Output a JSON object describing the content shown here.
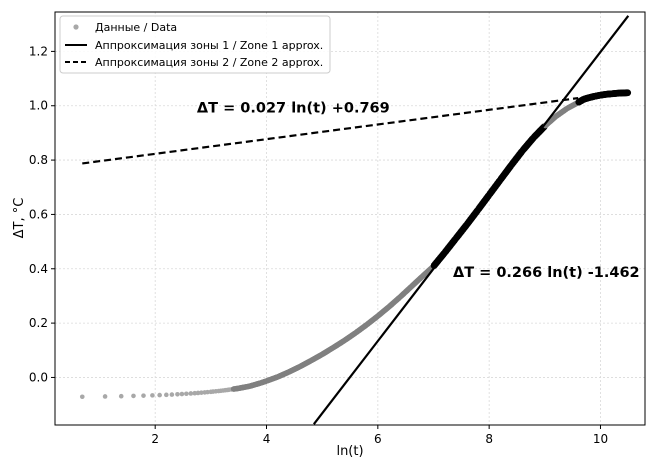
{
  "chart_data": {
    "type": "scatter",
    "title": "",
    "xlabel": "ln(t)",
    "ylabel": "ΔT, °C",
    "xlim": [
      0.2,
      10.8
    ],
    "ylim": [
      -0.175,
      1.345
    ],
    "x_ticks": [
      2,
      4,
      6,
      8,
      10
    ],
    "x_tick_labels": [
      "2",
      "4",
      "6",
      "8",
      "10"
    ],
    "y_ticks": [
      0.0,
      0.2,
      0.4,
      0.6,
      0.8,
      1.0,
      1.2
    ],
    "y_tick_labels": [
      "0.0",
      "0.2",
      "0.4",
      "0.6",
      "0.8",
      "1.0",
      "1.2"
    ],
    "grid": true,
    "legend_position": "top-left",
    "colors": {
      "data": "#808080",
      "data_light": "#a8a8a8",
      "fit": "#000000",
      "grid": "#d9d9d9"
    },
    "series": [
      {
        "name": "Данные / Data",
        "kind": "scatter",
        "points": [
          [
            0.69,
            -0.071
          ],
          [
            1.1,
            -0.07
          ],
          [
            1.39,
            -0.069
          ],
          [
            1.61,
            -0.068
          ],
          [
            1.79,
            -0.067
          ],
          [
            1.95,
            -0.066
          ],
          [
            2.08,
            -0.065
          ],
          [
            2.2,
            -0.064
          ],
          [
            2.3,
            -0.063
          ],
          [
            2.4,
            -0.062
          ],
          [
            2.48,
            -0.061
          ],
          [
            2.56,
            -0.06
          ],
          [
            2.64,
            -0.059
          ],
          [
            2.71,
            -0.058
          ],
          [
            2.77,
            -0.057
          ],
          [
            2.83,
            -0.056
          ],
          [
            2.89,
            -0.055
          ],
          [
            2.94,
            -0.054
          ],
          [
            3.0,
            -0.053
          ],
          [
            3.04,
            -0.052
          ],
          [
            3.09,
            -0.051
          ],
          [
            3.14,
            -0.05
          ],
          [
            3.18,
            -0.049
          ],
          [
            3.22,
            -0.048
          ],
          [
            3.26,
            -0.047
          ],
          [
            3.3,
            -0.046
          ],
          [
            3.33,
            -0.045
          ],
          [
            3.37,
            -0.044
          ],
          [
            3.4,
            -0.043
          ],
          [
            3.43,
            -0.042
          ],
          [
            3.5,
            -0.04
          ],
          [
            3.6,
            -0.036
          ],
          [
            3.7,
            -0.032
          ],
          [
            3.8,
            -0.026
          ],
          [
            3.9,
            -0.02
          ],
          [
            4.0,
            -0.013
          ],
          [
            4.2,
            0.002
          ],
          [
            4.4,
            0.02
          ],
          [
            4.6,
            0.04
          ],
          [
            4.8,
            0.062
          ],
          [
            5.0,
            0.085
          ],
          [
            5.2,
            0.11
          ],
          [
            5.4,
            0.136
          ],
          [
            5.6,
            0.164
          ],
          [
            5.8,
            0.194
          ],
          [
            6.0,
            0.226
          ],
          [
            6.2,
            0.26
          ],
          [
            6.4,
            0.296
          ],
          [
            6.6,
            0.334
          ],
          [
            6.8,
            0.372
          ],
          [
            7.0,
            0.409
          ],
          [
            7.2,
            0.459
          ],
          [
            7.4,
            0.511
          ],
          [
            7.6,
            0.563
          ],
          [
            7.8,
            0.617
          ],
          [
            8.0,
            0.672
          ],
          [
            8.2,
            0.727
          ],
          [
            8.4,
            0.782
          ],
          [
            8.6,
            0.835
          ],
          [
            8.8,
            0.883
          ],
          [
            9.0,
            0.925
          ],
          [
            9.2,
            0.961
          ],
          [
            9.4,
            0.99
          ],
          [
            9.6,
            1.012
          ],
          [
            9.7,
            1.024
          ],
          [
            9.8,
            1.03
          ],
          [
            9.9,
            1.035
          ],
          [
            10.0,
            1.039
          ],
          [
            10.1,
            1.042
          ],
          [
            10.2,
            1.044
          ],
          [
            10.3,
            1.046
          ],
          [
            10.4,
            1.047
          ],
          [
            10.5,
            1.048
          ]
        ]
      },
      {
        "name": "Аппроксимация зоны 1 / Zone 1 approx.",
        "kind": "line",
        "style": "solid",
        "slope": 0.266,
        "intercept": -1.462,
        "x_range": [
          4.85,
          10.5
        ]
      },
      {
        "name": "Аппроксимация зоны 2 / Zone 2 approx.",
        "kind": "line",
        "style": "dashed",
        "slope": 0.027,
        "intercept": 0.769,
        "x_range": [
          0.69,
          9.6
        ]
      }
    ],
    "highlight_ranges": [
      [
        7.0,
        9.0
      ],
      [
        9.6,
        10.5
      ]
    ],
    "annotations": [
      {
        "text": "ΔT = 0.027 ln(t) +0.769",
        "x": 2.75,
        "y": 0.975
      },
      {
        "text": "ΔT = 0.266 ln(t) -1.462",
        "x": 7.35,
        "y": 0.37
      }
    ]
  }
}
